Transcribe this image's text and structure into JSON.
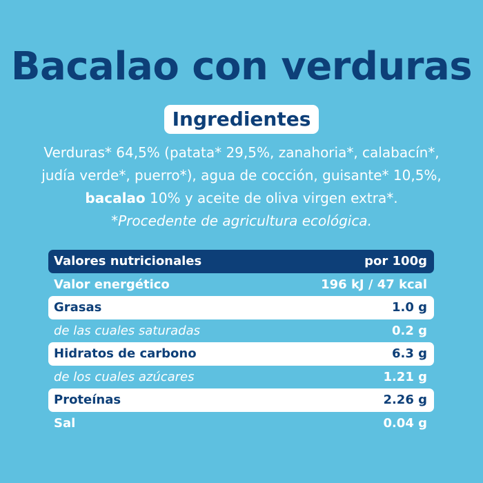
{
  "product": {
    "title": "Bacalao con verduras"
  },
  "ingredients": {
    "heading": "Ingredientes",
    "line1": "Verduras* 64,5% (patata* 29,5%, zanahoria*, calabacín*,",
    "line2": "judía verde*, puerro*), agua de cocción, guisante* 10,5%,",
    "line3_bold": "bacalao",
    "line3_rest": " 10% y aceite de oliva virgen extra*.",
    "note": "*Procedente de agricultura ecológica."
  },
  "nutrition": {
    "header_label": "Valores nutricionales",
    "header_value": "por 100g",
    "rows": [
      {
        "label": "Valor energético",
        "value": "196 kJ / 47 kcal",
        "style": "plain"
      },
      {
        "label": "Grasas",
        "value": "1.0 g",
        "style": "white"
      },
      {
        "label": "de las cuales saturadas",
        "value": "0.2 g",
        "style": "sub"
      },
      {
        "label": "Hidratos de carbono",
        "value": "6.3 g",
        "style": "white"
      },
      {
        "label": "de los cuales azúcares",
        "value": "1.21 g",
        "style": "sub"
      },
      {
        "label": "Proteínas",
        "value": "2.26 g",
        "style": "white"
      },
      {
        "label": "Sal",
        "value": "0.04 g",
        "style": "plain"
      }
    ]
  },
  "colors": {
    "background": "#5ec0e0",
    "navy": "#0d3f78",
    "white": "#ffffff"
  }
}
